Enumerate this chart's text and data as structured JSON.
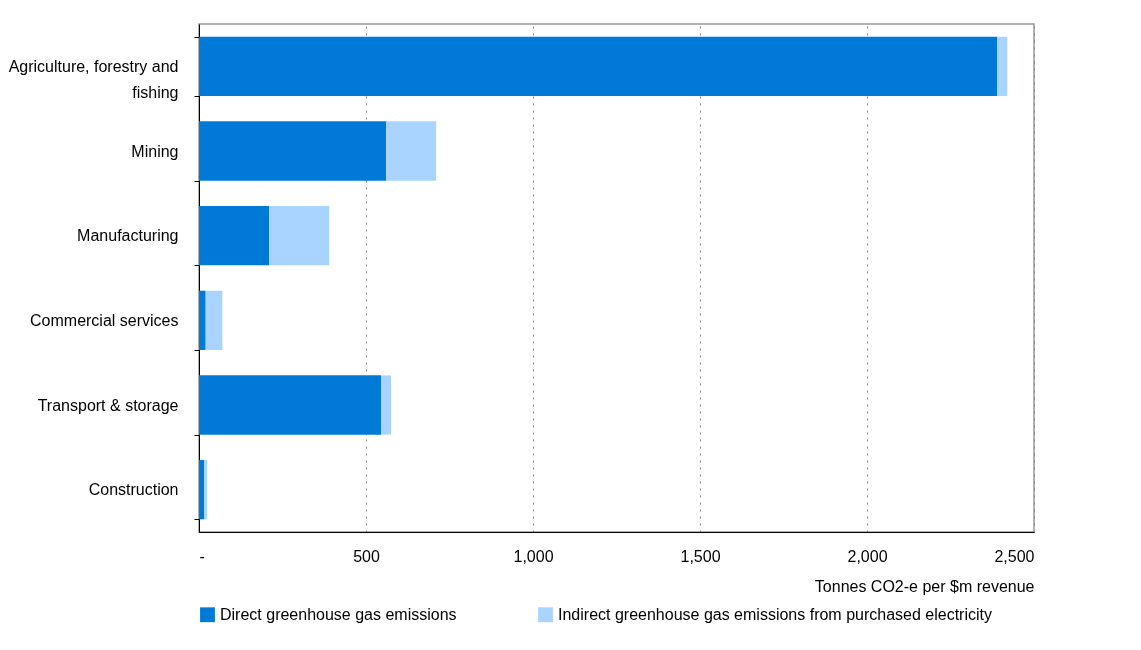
{
  "chart_data": {
    "type": "bar",
    "orientation": "horizontal",
    "stacked": true,
    "categories": [
      "Agriculture, forestry and fishing",
      "Mining",
      "Manufacturing",
      "Commercial services",
      "Transport & storage",
      "Construction"
    ],
    "series": [
      {
        "name": "Direct greenhouse gas emissions",
        "color": "#007ad6",
        "values": [
          2390,
          560,
          210,
          20,
          545,
          15
        ]
      },
      {
        "name": "Indirect greenhouse gas emissions from purchased electricity",
        "color": "#a9d4ff",
        "values": [
          30,
          150,
          180,
          50,
          30,
          9
        ]
      }
    ],
    "xlabel": "Tonnes CO2-e per $m revenue",
    "xlim": [
      0,
      2500
    ],
    "xticks": [
      {
        "value": 0,
        "label": "-"
      },
      500,
      {
        "value": 1000,
        "label": "1,000"
      },
      {
        "value": 1500,
        "label": "1,500"
      },
      {
        "value": 2000,
        "label": "2,000"
      },
      {
        "value": 2500,
        "label": "2,500"
      }
    ],
    "grid": "x",
    "legend": "bottom"
  }
}
